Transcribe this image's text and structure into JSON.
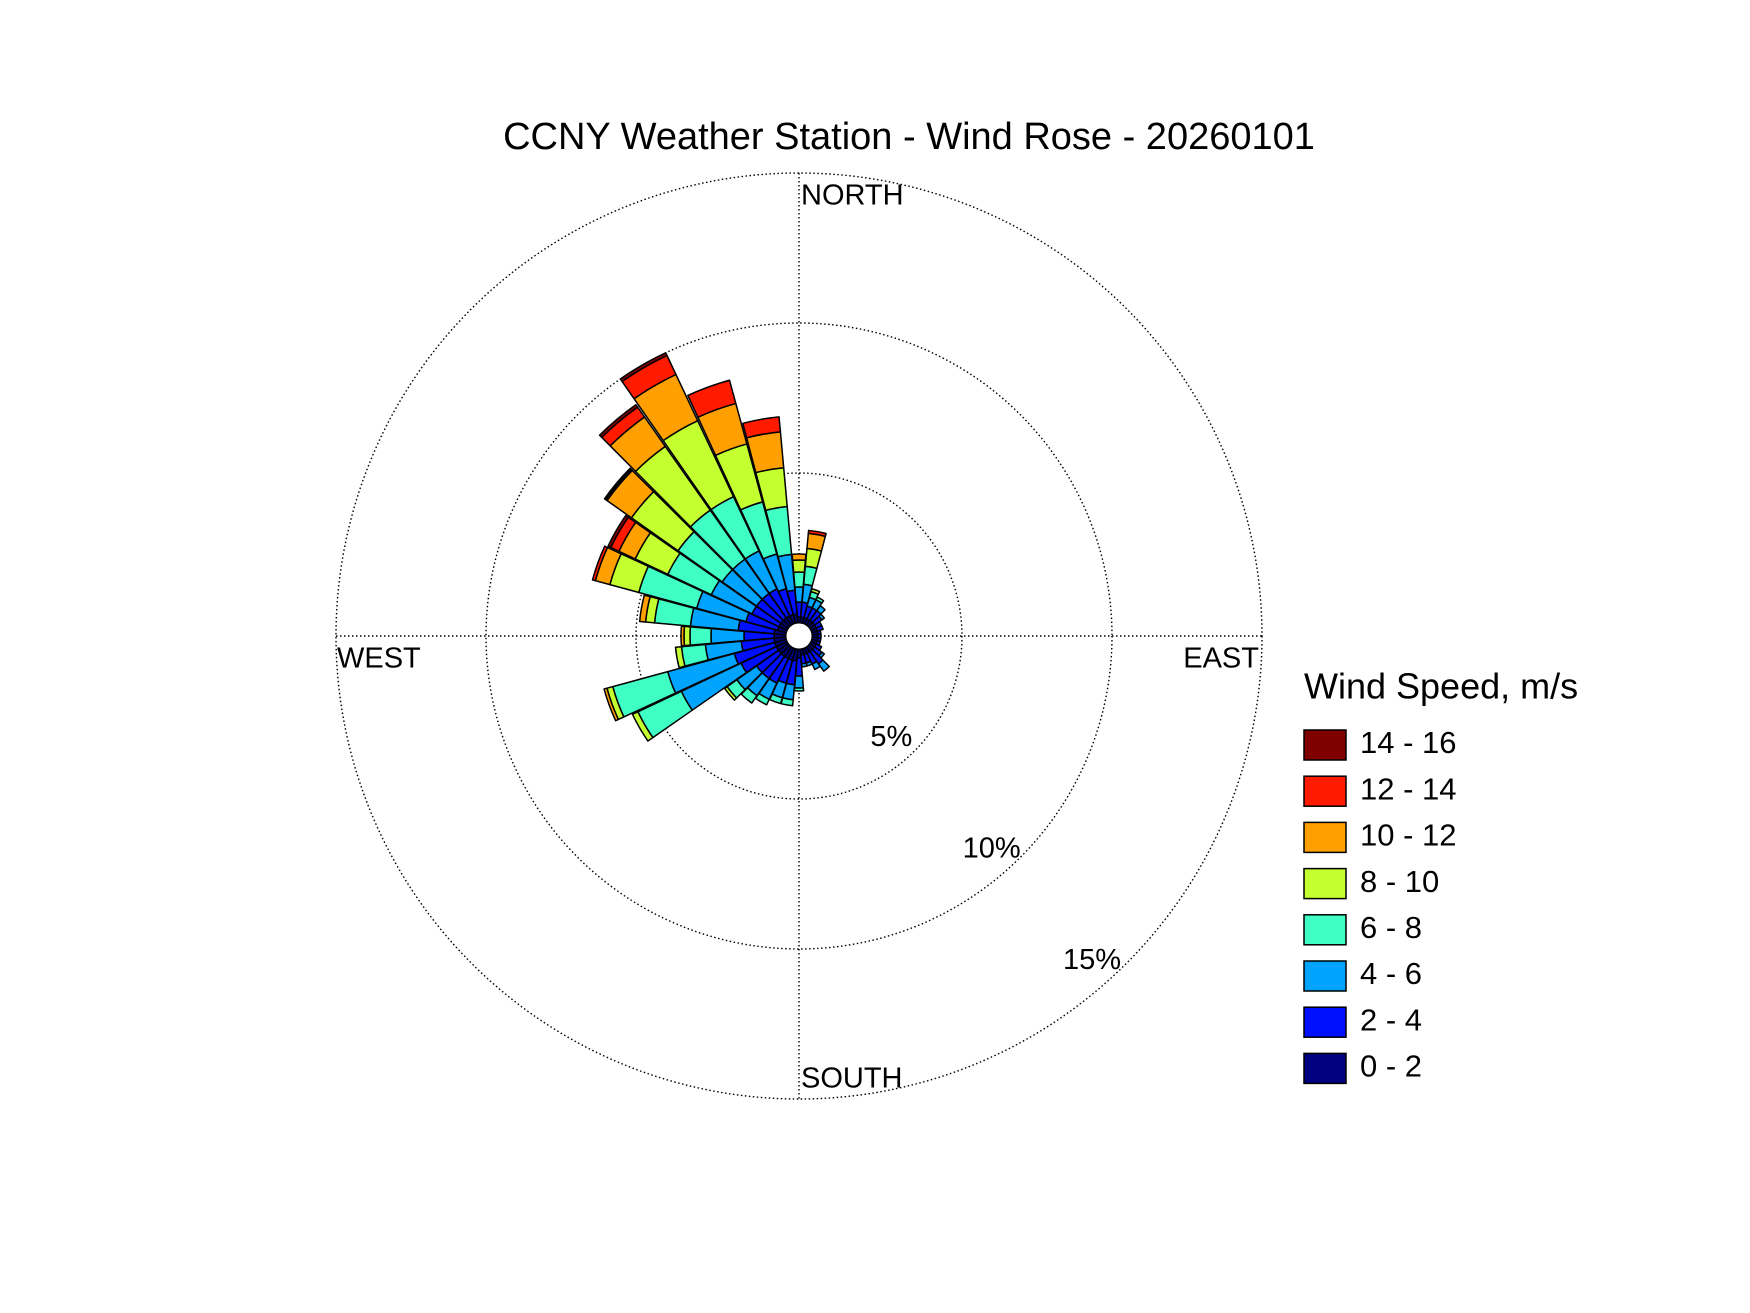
{
  "chart_data": {
    "type": "rose",
    "title": "CCNY Weather Station - Wind Rose - 20260101",
    "direction_labels": [
      "NORTH",
      "EAST",
      "SOUTH",
      "WEST"
    ],
    "legend_title": "Wind Speed, m/s",
    "x": [
      0,
      10,
      20,
      30,
      40,
      50,
      60,
      70,
      80,
      90,
      100,
      110,
      120,
      130,
      140,
      150,
      160,
      170,
      180,
      190,
      200,
      210,
      220,
      230,
      240,
      250,
      260,
      270,
      280,
      290,
      300,
      310,
      320,
      330,
      340,
      350
    ],
    "rlim": [
      0,
      15
    ],
    "rticks": [
      {
        "value": 5,
        "label": "5%"
      },
      {
        "value": 10,
        "label": "10%"
      },
      {
        "value": 15,
        "label": "15%"
      }
    ],
    "series": [
      {
        "name": "0 - 2",
        "color": "#000080",
        "values": [
          0.2,
          0.2,
          0.2,
          0.2,
          0.2,
          0.2,
          0.2,
          0.2,
          0.2,
          0.2,
          0.2,
          0.2,
          0.2,
          0.2,
          0.2,
          0.2,
          0.2,
          0.2,
          0.3,
          0.4,
          0.4,
          0.4,
          0.4,
          0.4,
          0.4,
          0.4,
          0.4,
          0.4,
          0.4,
          0.3,
          0.3,
          0.3,
          0.3,
          0.3,
          0.3,
          0.3
        ]
      },
      {
        "name": "2 - 4",
        "color": "#0010ff",
        "values": [
          0.5,
          0.5,
          0.4,
          0.4,
          0.4,
          0.3,
          0.2,
          0.2,
          0.1,
          0.1,
          0.1,
          0.1,
          0.2,
          0.3,
          0.5,
          0.4,
          0.3,
          0.3,
          0.6,
          0.8,
          0.8,
          0.9,
          0.9,
          0.9,
          1.3,
          1.4,
          1.1,
          1.0,
          1.2,
          1.1,
          1.0,
          1.0,
          1.0,
          1.0,
          0.9,
          0.8
        ]
      },
      {
        "name": "4 - 6",
        "color": "#00a4ff",
        "values": [
          0.5,
          0.6,
          0.3,
          0.3,
          0.2,
          0.1,
          0,
          0,
          0,
          0,
          0,
          0,
          0,
          0.1,
          0.3,
          0.2,
          0.1,
          0.1,
          0.4,
          0.5,
          0.5,
          0.6,
          0.7,
          0.8,
          2.2,
          2.3,
          1.2,
          1.1,
          1.6,
          1.7,
          1.5,
          1.4,
          1.4,
          1.4,
          1.2,
          1.2
        ]
      },
      {
        "name": "6 - 8",
        "color": "#40ffc4",
        "values": [
          0.5,
          0.6,
          0.2,
          0.1,
          0,
          0,
          0,
          0,
          0,
          0,
          0,
          0,
          0,
          0,
          0,
          0,
          0,
          0,
          0.1,
          0.2,
          0.2,
          0.2,
          0.3,
          0.4,
          1.6,
          1.9,
          0.8,
          0.7,
          1.2,
          2.0,
          1.6,
          1.8,
          2.0,
          2.0,
          1.8,
          1.6
        ]
      },
      {
        "name": "8 - 10",
        "color": "#c4ff30",
        "values": [
          0.4,
          0.6,
          0.1,
          0,
          0,
          0,
          0,
          0,
          0,
          0,
          0,
          0,
          0,
          0,
          0,
          0,
          0,
          0,
          0,
          0,
          0,
          0,
          0,
          0.1,
          0.2,
          0.2,
          0.2,
          0.2,
          0.3,
          1.0,
          1.2,
          1.9,
          2.6,
          2.8,
          2.0,
          1.3
        ]
      },
      {
        "name": "10 - 12",
        "color": "#ffa000",
        "values": [
          0.2,
          0.5,
          0,
          0,
          0,
          0,
          0,
          0,
          0,
          0,
          0,
          0,
          0,
          0,
          0,
          0,
          0,
          0,
          0,
          0,
          0,
          0,
          0,
          0,
          0,
          0.1,
          0,
          0.1,
          0.2,
          0.5,
          0.6,
          1.0,
          1.2,
          1.7,
          1.4,
          1.2
        ]
      },
      {
        "name": "12 - 14",
        "color": "#ff1a00",
        "values": [
          0,
          0.1,
          0,
          0,
          0,
          0,
          0,
          0,
          0,
          0,
          0,
          0,
          0,
          0,
          0,
          0,
          0,
          0,
          0,
          0,
          0,
          0,
          0,
          0,
          0,
          0,
          0,
          0,
          0,
          0.1,
          0.3,
          0.05,
          0.4,
          0.7,
          0.8,
          0.5
        ]
      },
      {
        "name": "14 - 16",
        "color": "#800000",
        "values": [
          0,
          0,
          0,
          0,
          0,
          0,
          0,
          0,
          0,
          0,
          0,
          0,
          0,
          0,
          0,
          0,
          0,
          0,
          0,
          0,
          0,
          0,
          0,
          0,
          0,
          0,
          0,
          0,
          0,
          0,
          0.1,
          0.05,
          0.1,
          0.1,
          0,
          0
        ]
      }
    ]
  }
}
